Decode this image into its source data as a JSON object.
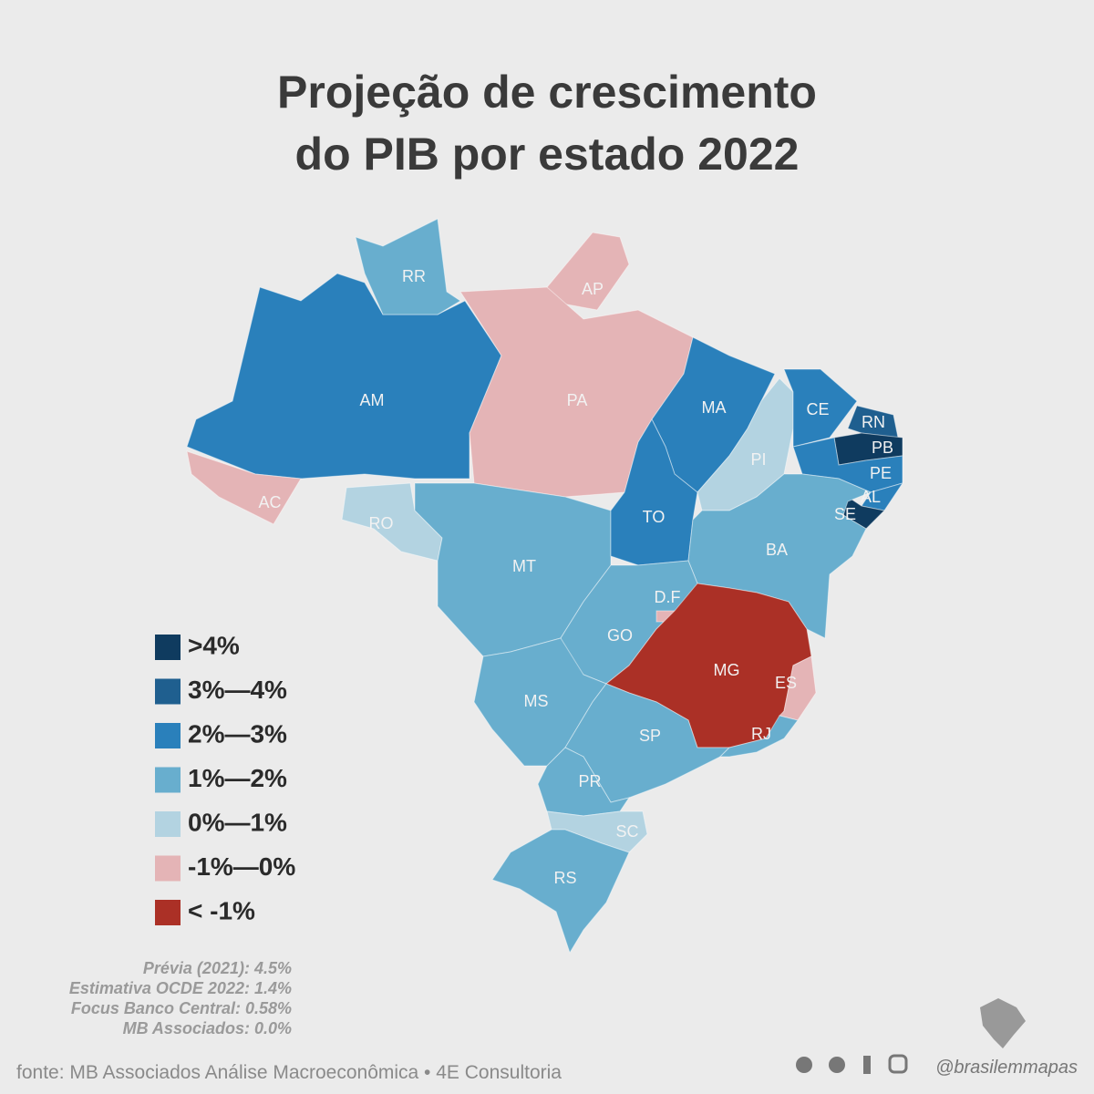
{
  "title": [
    "Projeção de crescimento",
    "do PIB por estado 2022"
  ],
  "legend": [
    {
      "label": ">4%",
      "color": "#0f3b5f"
    },
    {
      "label": "3%—4%",
      "color": "#1f5f8f"
    },
    {
      "label": "2%—3%",
      "color": "#2a80bb"
    },
    {
      "label": "1%—2%",
      "color": "#68aece"
    },
    {
      "label": "0%—1%",
      "color": "#b3d3e1"
    },
    {
      "label": "-1%—0%",
      "color": "#e4b4b6"
    },
    {
      "label": "< -1%",
      "color": "#ab3026"
    }
  ],
  "states": [
    {
      "label": "AM",
      "category": "2%—3%"
    },
    {
      "label": "RR",
      "category": "1%—2%"
    },
    {
      "label": "AP",
      "category": "-1%—0%"
    },
    {
      "label": "PA",
      "category": "-1%—0%"
    },
    {
      "label": "AC",
      "category": "-1%—0%"
    },
    {
      "label": "RO",
      "category": "0%—1%"
    },
    {
      "label": "MT",
      "category": "1%—2%"
    },
    {
      "label": "MA",
      "category": "2%—3%"
    },
    {
      "label": "TO",
      "category": "2%—3%"
    },
    {
      "label": "PI",
      "category": "0%—1%"
    },
    {
      "label": "CE",
      "category": "2%—3%"
    },
    {
      "label": "RN",
      "category": "3%—4%"
    },
    {
      "label": "PB",
      "category": ">4%"
    },
    {
      "label": "PE",
      "category": "2%—3%"
    },
    {
      "label": "AL",
      "category": "2%—3%"
    },
    {
      "label": "SE",
      "category": ">4%"
    },
    {
      "label": "BA",
      "category": "1%—2%"
    },
    {
      "label": "GO",
      "category": "1%—2%"
    },
    {
      "label": "D.F",
      "category": "-1%—0%"
    },
    {
      "label": "MG",
      "category": "< -1%"
    },
    {
      "label": "ES",
      "category": "-1%—0%"
    },
    {
      "label": "MS",
      "category": "1%—2%"
    },
    {
      "label": "SP",
      "category": "1%—2%"
    },
    {
      "label": "RJ",
      "category": "1%—2%"
    },
    {
      "label": "PR",
      "category": "1%—2%"
    },
    {
      "label": "SC",
      "category": "0%—1%"
    },
    {
      "label": "RS",
      "category": "1%—2%"
    }
  ],
  "notes": [
    "Prévia (2021): 4.5%",
    "Estimativa OCDE 2022: 1.4%",
    "Focus Banco Central: 0.58%",
    "MB Associados: 0.0%"
  ],
  "source": "fonte: MB Associados Análise Macroeconômica  • 4E Consultoria",
  "handle": "@brasilemmapas"
}
